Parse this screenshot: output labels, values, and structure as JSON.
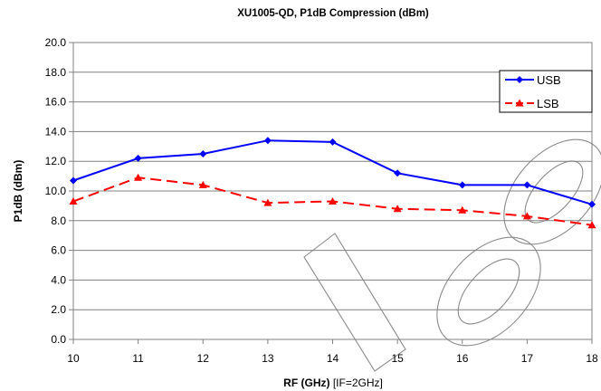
{
  "chart_data": {
    "type": "line",
    "title": "XU1005-QD, P1dB Compression (dBm)",
    "xlabel_bold": "RF (GHz)",
    "xlabel_suffix": " [IF=2GHz]",
    "ylabel": "P1dB (dBm)",
    "x": [
      10,
      11,
      12,
      13,
      14,
      15,
      16,
      17,
      18
    ],
    "xlim": [
      10,
      18
    ],
    "ylim": [
      0,
      20
    ],
    "yticks": [
      "0.0",
      "2.0",
      "4.0",
      "6.0",
      "8.0",
      "10.0",
      "12.0",
      "14.0",
      "16.0",
      "18.0",
      "20.0"
    ],
    "xticks": [
      "10",
      "11",
      "12",
      "13",
      "14",
      "15",
      "16",
      "17",
      "18"
    ],
    "grid": true,
    "legend_position": "top-right",
    "series": [
      {
        "name": "USB",
        "values": [
          10.7,
          12.2,
          12.5,
          13.4,
          13.3,
          11.2,
          10.4,
          10.4,
          9.1
        ],
        "color": "#0000ff",
        "marker": "diamond",
        "dash": "solid"
      },
      {
        "name": "LSB",
        "values": [
          9.3,
          10.9,
          10.4,
          9.2,
          9.3,
          8.8,
          8.7,
          8.3,
          7.7
        ],
        "color": "#ff0000",
        "marker": "triangle",
        "dash": "dashed"
      }
    ]
  }
}
